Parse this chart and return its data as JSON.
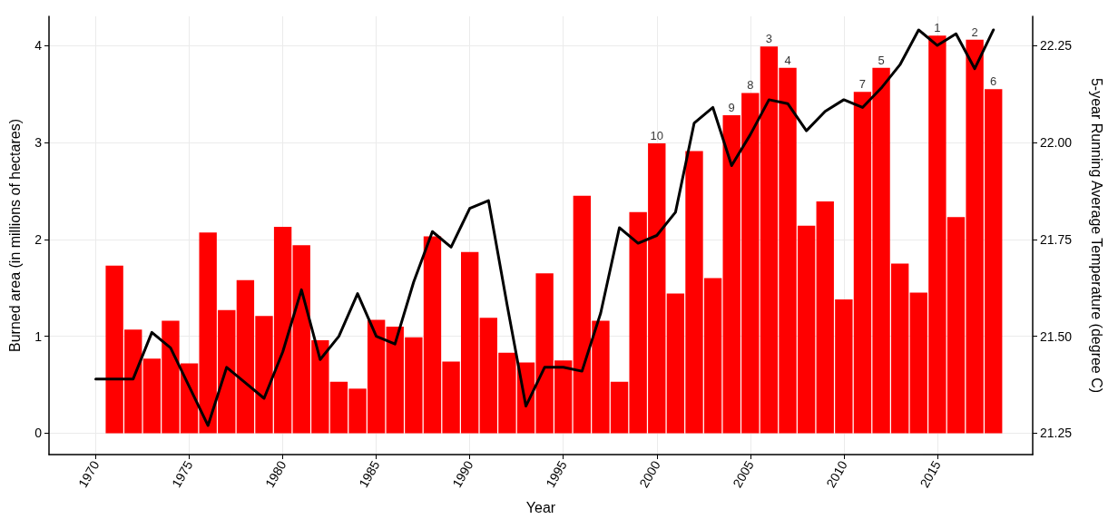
{
  "chart_data": {
    "type": "bar",
    "xlabel": "Year",
    "ylabel": "Burned area (in millions of hectares)",
    "y2label": "5-year Running Average Temperature (degree C)",
    "x": [
      1971,
      1972,
      1973,
      1974,
      1975,
      1976,
      1977,
      1978,
      1979,
      1980,
      1981,
      1982,
      1983,
      1984,
      1985,
      1986,
      1987,
      1988,
      1989,
      1990,
      1991,
      1992,
      1993,
      1994,
      1995,
      1996,
      1997,
      1998,
      1999,
      2000,
      2001,
      2002,
      2003,
      2004,
      2005,
      2006,
      2007,
      2008,
      2009,
      2010,
      2011,
      2012,
      2013,
      2014,
      2015,
      2016,
      2017,
      2018
    ],
    "series": [
      {
        "color": "#ff0000",
        "values": [
          1.73,
          1.07,
          0.77,
          1.16,
          0.72,
          2.07,
          1.27,
          1.58,
          1.21,
          2.13,
          1.94,
          0.96,
          0.53,
          0.46,
          1.17,
          1.1,
          0.99,
          2.03,
          0.74,
          1.87,
          1.19,
          0.83,
          0.73,
          1.65,
          0.75,
          2.45,
          1.16,
          0.53,
          2.28,
          2.99,
          1.44,
          2.91,
          1.6,
          3.28,
          3.51,
          3.99,
          3.77,
          2.14,
          2.39,
          1.38,
          3.52,
          3.77,
          1.75,
          1.45,
          4.1,
          2.23,
          4.06,
          3.55
        ]
      },
      {
        "type": "line",
        "axis": "y2",
        "color": "#000000",
        "x": [
          1970,
          1971,
          1972,
          1973,
          1974,
          1975,
          1976,
          1977,
          1978,
          1979,
          1980,
          1981,
          1982,
          1983,
          1984,
          1985,
          1986,
          1987,
          1988,
          1989,
          1990,
          1991,
          1992,
          1993,
          1994,
          1995,
          1996,
          1997,
          1998,
          1999,
          2000,
          2001,
          2002,
          2003,
          2004,
          2005,
          2006,
          2007,
          2008,
          2009,
          2010,
          2011,
          2012,
          2013,
          2014,
          2015,
          2016,
          2017,
          2018
        ],
        "values": [
          21.39,
          21.39,
          21.39,
          21.51,
          21.47,
          21.37,
          21.27,
          21.42,
          21.38,
          21.34,
          21.46,
          21.62,
          21.44,
          21.5,
          21.61,
          21.5,
          21.48,
          21.64,
          21.77,
          21.73,
          21.83,
          21.85,
          21.58,
          21.32,
          21.42,
          21.42,
          21.41,
          21.56,
          21.78,
          21.74,
          21.76,
          21.82,
          22.05,
          22.09,
          21.94,
          22.02,
          22.11,
          22.1,
          22.03,
          22.08,
          22.11,
          22.09,
          22.14,
          22.2,
          22.29,
          22.25,
          22.28,
          22.19,
          22.29
        ]
      }
    ],
    "xlim": [
      1967.5,
      2020.1
    ],
    "xticks": [
      1970,
      1975,
      1980,
      1985,
      1990,
      1995,
      2000,
      2005,
      2010,
      2015
    ],
    "ylim": [
      -0.22,
      4.3
    ],
    "yticks": [
      0,
      1,
      2,
      3,
      4
    ],
    "y2lim": [
      21.195,
      22.325
    ],
    "y2ticks": [
      {
        "value": 21.25,
        "label": "21.25"
      },
      {
        "value": 21.5,
        "label": "21.50"
      },
      {
        "value": 21.75,
        "label": "21.75"
      },
      {
        "value": 22.0,
        "label": "22.00"
      },
      {
        "value": 22.25,
        "label": "22.25"
      }
    ],
    "annotations": [
      {
        "text": "10",
        "x": 2000,
        "y": 2.99
      },
      {
        "text": "9",
        "x": 2004,
        "y": 3.28
      },
      {
        "text": "8",
        "x": 2005,
        "y": 3.51
      },
      {
        "text": "3",
        "x": 2006,
        "y": 3.99
      },
      {
        "text": "4",
        "x": 2007,
        "y": 3.77
      },
      {
        "text": "7",
        "x": 2011,
        "y": 3.52
      },
      {
        "text": "5",
        "x": 2012,
        "y": 3.77
      },
      {
        "text": "1",
        "x": 2015,
        "y": 4.1
      },
      {
        "text": "2",
        "x": 2017,
        "y": 4.06
      },
      {
        "text": "6",
        "x": 2018,
        "y": 3.55
      }
    ],
    "grid": true,
    "legend": false,
    "marker": "none",
    "line_style": "solid"
  }
}
